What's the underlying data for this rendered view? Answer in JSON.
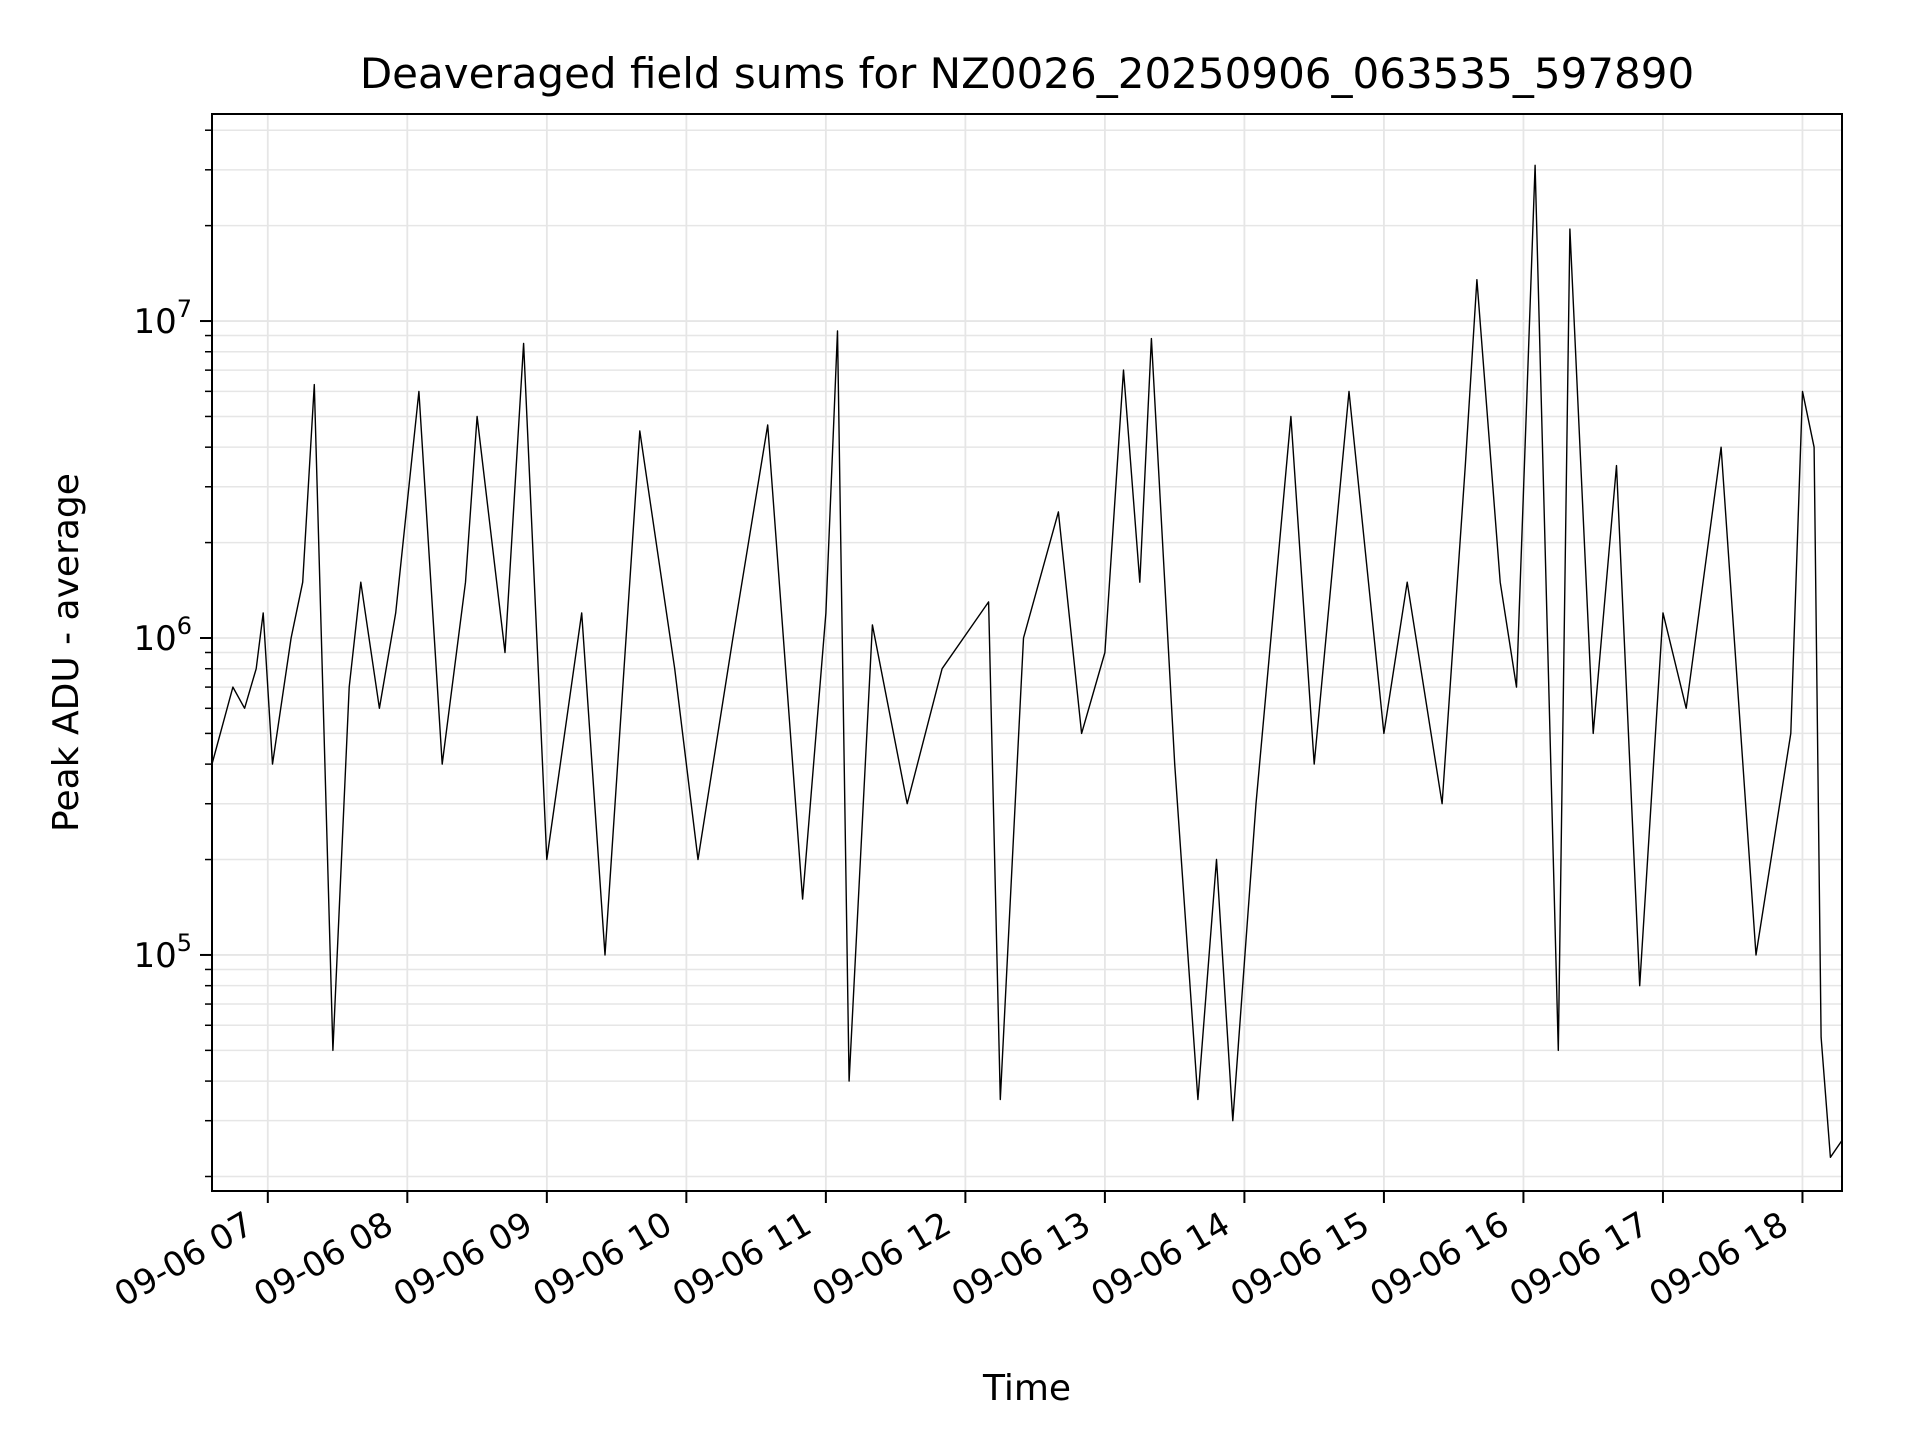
{
  "chart_data": {
    "type": "line",
    "title": "Deaveraged field sums for NZ0026_20250906_063535_597890",
    "xlabel": "Time",
    "ylabel": "Peak ADU - average",
    "yscale": "log",
    "xlim": [
      "2025-09-06T06:36",
      "2025-09-06T18:17"
    ],
    "ylim": [
      18000,
      45000000
    ],
    "grid": true,
    "line_color": "#000000",
    "grid_color": "#e6e6e6",
    "x_tick_labels": [
      "09-06 07",
      "09-06 08",
      "09-06 09",
      "09-06 10",
      "09-06 11",
      "09-06 12",
      "09-06 13",
      "09-06 14",
      "09-06 15",
      "09-06 16",
      "09-06 17",
      "09-06 18"
    ],
    "x_tick_values": [
      "2025-09-06T07:00",
      "2025-09-06T08:00",
      "2025-09-06T09:00",
      "2025-09-06T10:00",
      "2025-09-06T11:00",
      "2025-09-06T12:00",
      "2025-09-06T13:00",
      "2025-09-06T14:00",
      "2025-09-06T15:00",
      "2025-09-06T16:00",
      "2025-09-06T17:00",
      "2025-09-06T18:00"
    ],
    "y_ticks": [
      {
        "value": 100000,
        "base": "10",
        "exp": "5"
      },
      {
        "value": 1000000,
        "base": "10",
        "exp": "6"
      },
      {
        "value": 10000000,
        "base": "10",
        "exp": "7"
      }
    ],
    "series": [
      {
        "x": [
          "2025-09-06T06:36",
          "2025-09-06T06:45",
          "2025-09-06T06:50",
          "2025-09-06T06:55",
          "2025-09-06T06:58",
          "2025-09-06T07:02",
          "2025-09-06T07:10",
          "2025-09-06T07:15",
          "2025-09-06T07:20",
          "2025-09-06T07:28",
          "2025-09-06T07:35",
          "2025-09-06T07:40",
          "2025-09-06T07:48",
          "2025-09-06T07:55",
          "2025-09-06T08:05",
          "2025-09-06T08:15",
          "2025-09-06T08:25",
          "2025-09-06T08:30",
          "2025-09-06T08:42",
          "2025-09-06T08:50",
          "2025-09-06T09:00",
          "2025-09-06T09:15",
          "2025-09-06T09:25",
          "2025-09-06T09:40",
          "2025-09-06T09:55",
          "2025-09-06T10:05",
          "2025-09-06T10:20",
          "2025-09-06T10:35",
          "2025-09-06T10:50",
          "2025-09-06T11:00",
          "2025-09-06T11:05",
          "2025-09-06T11:10",
          "2025-09-06T11:20",
          "2025-09-06T11:35",
          "2025-09-06T11:50",
          "2025-09-06T12:10",
          "2025-09-06T12:15",
          "2025-09-06T12:25",
          "2025-09-06T12:40",
          "2025-09-06T12:50",
          "2025-09-06T13:00",
          "2025-09-06T13:08",
          "2025-09-06T13:15",
          "2025-09-06T13:20",
          "2025-09-06T13:30",
          "2025-09-06T13:40",
          "2025-09-06T13:48",
          "2025-09-06T13:55",
          "2025-09-06T14:05",
          "2025-09-06T14:20",
          "2025-09-06T14:30",
          "2025-09-06T14:45",
          "2025-09-06T15:00",
          "2025-09-06T15:10",
          "2025-09-06T15:25",
          "2025-09-06T15:35",
          "2025-09-06T15:40",
          "2025-09-06T15:50",
          "2025-09-06T15:57",
          "2025-09-06T16:05",
          "2025-09-06T16:15",
          "2025-09-06T16:20",
          "2025-09-06T16:30",
          "2025-09-06T16:40",
          "2025-09-06T16:50",
          "2025-09-06T17:00",
          "2025-09-06T17:10",
          "2025-09-06T17:25",
          "2025-09-06T17:40",
          "2025-09-06T17:55",
          "2025-09-06T18:00",
          "2025-09-06T18:05",
          "2025-09-06T18:08",
          "2025-09-06T18:12",
          "2025-09-06T18:17"
        ],
        "y": [
          400000,
          700000,
          600000,
          800000,
          1200000,
          400000,
          1000000,
          1500000,
          6300000,
          50000,
          700000,
          1500000,
          600000,
          1200000,
          6000000,
          400000,
          1500000,
          5000000,
          900000,
          8500000,
          200000,
          1200000,
          100000,
          4500000,
          800000,
          200000,
          1000000,
          4700000,
          150000,
          1200000,
          9300000,
          40000,
          1100000,
          300000,
          800000,
          1300000,
          35000,
          1000000,
          2500000,
          500000,
          900000,
          7000000,
          1500000,
          8800000,
          400000,
          35000,
          200000,
          30000,
          300000,
          5000000,
          400000,
          6000000,
          500000,
          1500000,
          300000,
          3500000,
          13500000,
          1500000,
          700000,
          31000000,
          50000,
          19500000,
          500000,
          3500000,
          80000,
          1200000,
          600000,
          4000000,
          100000,
          500000,
          6000000,
          4000000,
          55000,
          23000,
          26000
        ]
      }
    ]
  }
}
